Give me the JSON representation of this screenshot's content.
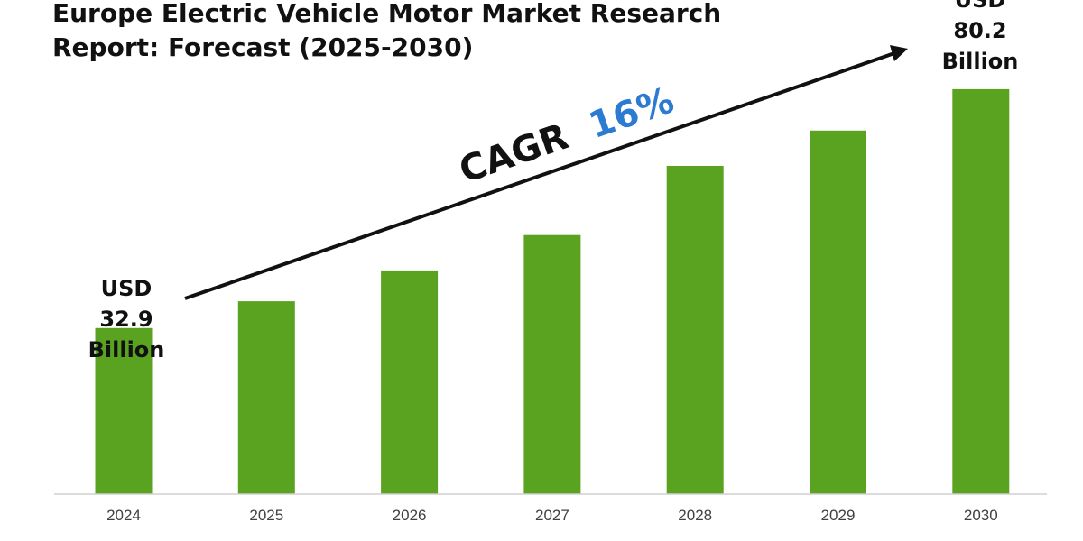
{
  "title_line1": "Europe Electric Vehicle Motor Market Research",
  "title_line2": "Report: Forecast (2025-2030)",
  "cagr": {
    "prefix": "CAGR",
    "value": "16%"
  },
  "start_label": [
    "USD",
    "32.9",
    "Billion"
  ],
  "end_label": [
    "USD",
    "80.2",
    "Billion"
  ],
  "colors": {
    "bar": "#5aa321",
    "cagr_value": "#2a7bd1",
    "text": "#111111",
    "axis": "#d0d0d0"
  },
  "chart_data": {
    "type": "bar",
    "title": "Europe Electric Vehicle Motor Market Research Report: Forecast (2025-2030)",
    "categories": [
      "2024",
      "2025",
      "2026",
      "2027",
      "2028",
      "2029",
      "2030"
    ],
    "values": [
      32.9,
      38.2,
      44.3,
      51.3,
      65.0,
      72.0,
      80.2
    ],
    "unit": "USD Billion",
    "ylim": [
      0,
      90
    ],
    "grid": false,
    "legend": "none"
  }
}
